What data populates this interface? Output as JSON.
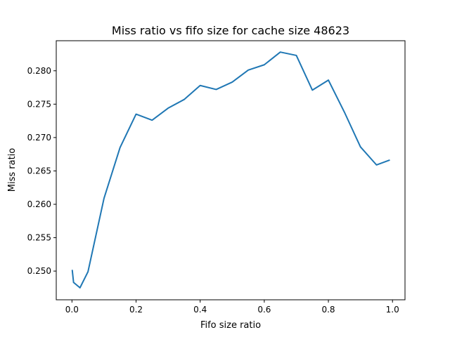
{
  "chart_data": {
    "type": "line",
    "title": "Miss ratio vs fifo size for cache size 48623",
    "xlabel": "Fifo size ratio",
    "ylabel": "Miss ratio",
    "xlim": [
      -0.049,
      1.039
    ],
    "ylim": [
      0.2457,
      0.2845
    ],
    "xticks": [
      0.0,
      0.2,
      0.4,
      0.6,
      0.8,
      1.0
    ],
    "xtick_labels": [
      "0.0",
      "0.2",
      "0.4",
      "0.6",
      "0.8",
      "1.0"
    ],
    "yticks": [
      0.25,
      0.255,
      0.26,
      0.265,
      0.27,
      0.275,
      0.28
    ],
    "ytick_labels": [
      "0.250",
      "0.255",
      "0.260",
      "0.265",
      "0.270",
      "0.275",
      "0.280"
    ],
    "grid": false,
    "series": [
      {
        "color": "#1f77b4",
        "x": [
          0.001,
          0.005,
          0.025,
          0.05,
          0.1,
          0.15,
          0.2,
          0.25,
          0.3,
          0.35,
          0.4,
          0.45,
          0.5,
          0.55,
          0.6,
          0.65,
          0.7,
          0.75,
          0.8,
          0.85,
          0.9,
          0.95,
          0.99
        ],
        "y": [
          0.2501,
          0.2483,
          0.2475,
          0.2499,
          0.2609,
          0.2685,
          0.2735,
          0.2726,
          0.2744,
          0.2757,
          0.2778,
          0.2772,
          0.2783,
          0.2801,
          0.2809,
          0.2828,
          0.2823,
          0.2771,
          0.2786,
          0.2738,
          0.2686,
          0.2659,
          0.2666
        ]
      }
    ]
  }
}
